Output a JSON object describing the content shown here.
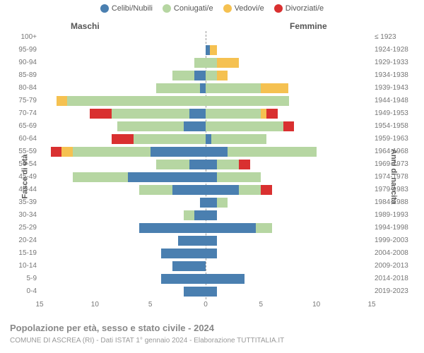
{
  "legend": {
    "items": [
      {
        "label": "Celibi/Nubili",
        "color": "#4a7fb0"
      },
      {
        "label": "Coniugati/e",
        "color": "#b6d6a2"
      },
      {
        "label": "Vedovi/e",
        "color": "#f5c151"
      },
      {
        "label": "Divorziati/e",
        "color": "#d93030"
      }
    ]
  },
  "gender_labels": {
    "m": "Maschi",
    "f": "Femmine"
  },
  "yaxis_left_title": "Fasce di età",
  "yaxis_right_title": "Anni di nascita",
  "xmax": 15,
  "xticks": [
    15,
    10,
    5,
    0,
    5,
    10,
    15
  ],
  "title": "Popolazione per età, sesso e stato civile - 2024",
  "subtitle": "COMUNE DI ASCREA (RI) - Dati ISTAT 1° gennaio 2024 - Elaborazione TUTTITALIA.IT",
  "colors": {
    "celibi": "#4a7fb0",
    "coniugati": "#b6d6a2",
    "vedovi": "#f5c151",
    "divorziati": "#d93030",
    "bg": "#ffffff",
    "axis": "#999999",
    "text": "#777777"
  },
  "rows": [
    {
      "age": "100+",
      "year": "≤ 1923",
      "m": [
        0,
        0,
        0,
        0
      ],
      "f": [
        0,
        0,
        0,
        0
      ]
    },
    {
      "age": "95-99",
      "year": "1924-1928",
      "m": [
        0,
        0,
        0,
        0
      ],
      "f": [
        0.4,
        0,
        0.6,
        0
      ]
    },
    {
      "age": "90-94",
      "year": "1929-1933",
      "m": [
        0,
        1,
        0,
        0
      ],
      "f": [
        0,
        1,
        2,
        0
      ]
    },
    {
      "age": "85-89",
      "year": "1934-1938",
      "m": [
        1,
        2,
        0,
        0
      ],
      "f": [
        0,
        1,
        1,
        0
      ]
    },
    {
      "age": "80-84",
      "year": "1939-1943",
      "m": [
        0.5,
        4,
        0,
        0
      ],
      "f": [
        0,
        5,
        2.5,
        0
      ]
    },
    {
      "age": "75-79",
      "year": "1944-1948",
      "m": [
        0,
        12.5,
        1,
        0
      ],
      "f": [
        0,
        7.5,
        0,
        0
      ]
    },
    {
      "age": "70-74",
      "year": "1949-1953",
      "m": [
        1.5,
        7,
        0,
        2
      ],
      "f": [
        0,
        5,
        0.5,
        1
      ]
    },
    {
      "age": "65-69",
      "year": "1954-1958",
      "m": [
        2,
        6,
        0,
        0
      ],
      "f": [
        0,
        7,
        0,
        1
      ]
    },
    {
      "age": "60-64",
      "year": "1959-1963",
      "m": [
        0,
        6.5,
        0,
        2
      ],
      "f": [
        0.5,
        5,
        0,
        0
      ]
    },
    {
      "age": "55-59",
      "year": "1964-1968",
      "m": [
        5,
        7,
        1,
        1
      ],
      "f": [
        2,
        8,
        0,
        0
      ]
    },
    {
      "age": "50-54",
      "year": "1969-1973",
      "m": [
        1.5,
        3,
        0,
        0
      ],
      "f": [
        1,
        2,
        0,
        1
      ]
    },
    {
      "age": "45-49",
      "year": "1974-1978",
      "m": [
        7,
        5,
        0,
        0
      ],
      "f": [
        1,
        4,
        0,
        0
      ]
    },
    {
      "age": "40-44",
      "year": "1979-1983",
      "m": [
        3,
        3,
        0,
        0
      ],
      "f": [
        3,
        2,
        0,
        1
      ]
    },
    {
      "age": "35-39",
      "year": "1984-1988",
      "m": [
        0.5,
        0,
        0,
        0
      ],
      "f": [
        1,
        1,
        0,
        0
      ]
    },
    {
      "age": "30-34",
      "year": "1989-1993",
      "m": [
        1,
        1,
        0,
        0
      ],
      "f": [
        1,
        0,
        0,
        0
      ]
    },
    {
      "age": "25-29",
      "year": "1994-1998",
      "m": [
        6,
        0,
        0,
        0
      ],
      "f": [
        4.5,
        1.5,
        0,
        0
      ]
    },
    {
      "age": "20-24",
      "year": "1999-2003",
      "m": [
        2.5,
        0,
        0,
        0
      ],
      "f": [
        1,
        0,
        0,
        0
      ]
    },
    {
      "age": "15-19",
      "year": "2004-2008",
      "m": [
        4,
        0,
        0,
        0
      ],
      "f": [
        1,
        0,
        0,
        0
      ]
    },
    {
      "age": "10-14",
      "year": "2009-2013",
      "m": [
        3,
        0,
        0,
        0
      ],
      "f": [
        0,
        0,
        0,
        0
      ]
    },
    {
      "age": "5-9",
      "year": "2014-2018",
      "m": [
        4,
        0,
        0,
        0
      ],
      "f": [
        3.5,
        0,
        0,
        0
      ]
    },
    {
      "age": "0-4",
      "year": "2019-2023",
      "m": [
        2,
        0,
        0,
        0
      ],
      "f": [
        1,
        0,
        0,
        0
      ]
    }
  ]
}
